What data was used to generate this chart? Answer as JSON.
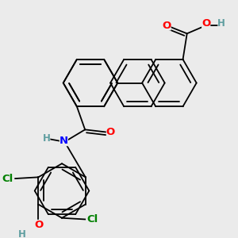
{
  "background_color": "#ebebeb",
  "bond_color": "#000000",
  "atom_colors": {
    "O": "#ff0000",
    "N": "#0000ff",
    "Cl": "#008000",
    "H": "#5f9ea0",
    "C": "#000000"
  },
  "fig_size": [
    3.0,
    3.0
  ],
  "dpi": 100,
  "lw": 1.3,
  "r": 0.33,
  "fs": 9.5
}
